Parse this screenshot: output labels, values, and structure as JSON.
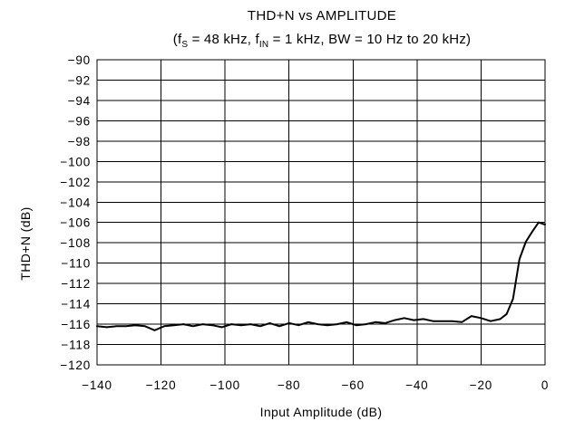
{
  "chart_data": {
    "type": "line",
    "title": "THD+N vs AMPLITUDE",
    "subtitle": {
      "prefix": "(f",
      "fs_sub": "S",
      "part1": " = 48 kHz, f",
      "fin_sub": "IN",
      "part2": " = 1 kHz, BW = 10 Hz to 20 kHz)"
    },
    "xlabel": "Input Amplitude (dB)",
    "ylabel": "THD+N (dB)",
    "xlim": [
      -140,
      0
    ],
    "ylim": [
      -120,
      -90
    ],
    "x_ticks": [
      -140,
      -120,
      -100,
      -80,
      -60,
      -40,
      -20,
      0
    ],
    "x_tick_labels": [
      "−140",
      "−120",
      "−100",
      "−80",
      "−60",
      "−40",
      "−20",
      "0"
    ],
    "y_ticks": [
      -90,
      -92,
      -94,
      -96,
      -98,
      -100,
      -102,
      -104,
      -106,
      -108,
      -110,
      -112,
      -114,
      -116,
      -118,
      -120
    ],
    "y_tick_labels": [
      "−90",
      "−92",
      "−94",
      "−96",
      "−98",
      "−100",
      "−102",
      "−104",
      "−106",
      "−108",
      "−110",
      "−112",
      "−114",
      "−116",
      "−118",
      "−120"
    ],
    "grid": true,
    "series": [
      {
        "x": [
          -140,
          -137,
          -134,
          -131,
          -128,
          -125,
          -122,
          -119,
          -116,
          -113,
          -110,
          -107,
          -104,
          -101,
          -98,
          -95,
          -92,
          -89,
          -86,
          -83,
          -80,
          -77,
          -74,
          -71,
          -68,
          -65,
          -62,
          -59,
          -56,
          -53,
          -50,
          -47,
          -44,
          -41,
          -38,
          -35,
          -32,
          -29,
          -26,
          -23,
          -20,
          -17,
          -14,
          -12,
          -10,
          -8,
          -6,
          -4,
          -2,
          0
        ],
        "y": [
          -116.2,
          -116.3,
          -116.2,
          -116.2,
          -116.1,
          -116.2,
          -116.6,
          -116.2,
          -116.1,
          -116.0,
          -116.2,
          -116.0,
          -116.1,
          -116.3,
          -116.0,
          -116.1,
          -116.0,
          -116.2,
          -115.9,
          -116.2,
          -115.9,
          -116.1,
          -115.8,
          -116.0,
          -116.1,
          -116.0,
          -115.8,
          -116.1,
          -116.0,
          -115.8,
          -115.9,
          -115.6,
          -115.4,
          -115.6,
          -115.5,
          -115.7,
          -115.7,
          -115.7,
          -115.8,
          -115.2,
          -115.4,
          -115.7,
          -115.5,
          -115.0,
          -113.5,
          -109.6,
          -107.9,
          -106.9,
          -106.0,
          -106.2
        ]
      }
    ],
    "line_color": "#000000"
  }
}
